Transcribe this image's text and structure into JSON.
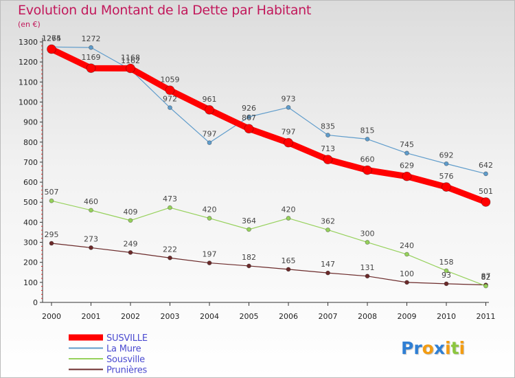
{
  "chart_data": {
    "type": "line",
    "title": "Evolution du Montant de la Dette par Habitant",
    "subtitle": "(en €)",
    "x": [
      "2000",
      "2001",
      "2002",
      "2003",
      "2004",
      "2005",
      "2006",
      "2007",
      "2008",
      "2009",
      "2010",
      "2011"
    ],
    "ylim": [
      0,
      1300
    ],
    "yticks": [
      0,
      100,
      200,
      300,
      400,
      500,
      600,
      700,
      800,
      900,
      1000,
      1100,
      1200,
      1300
    ],
    "grid": false,
    "legend_position": "bottom-left",
    "series": [
      {
        "name": "SUSVILLE",
        "color": "#ff0000",
        "width": 9,
        "marker_r": 6.5,
        "values": [
          1264,
          1169,
          1168,
          1059,
          961,
          867,
          797,
          713,
          660,
          629,
          576,
          501
        ],
        "labels": [
          "1264",
          "1169",
          "1168",
          "1059",
          "961",
          "867",
          "797",
          "713",
          "660",
          "629",
          "576",
          "501"
        ]
      },
      {
        "name": "La Mure",
        "color": "#5f9ccb",
        "width": 1.2,
        "marker_r": 3,
        "values": [
          1275,
          1272,
          1162,
          972,
          797,
          926,
          973,
          835,
          815,
          745,
          692,
          642
        ],
        "labels": [
          "1275",
          "1272",
          "1162",
          "972",
          "797",
          "926",
          "973",
          "835",
          "815",
          "745",
          "692",
          "642"
        ]
      },
      {
        "name": "Sousville",
        "color": "#96d15b",
        "width": 1.2,
        "marker_r": 3,
        "values": [
          507,
          460,
          409,
          473,
          420,
          364,
          420,
          362,
          300,
          240,
          158,
          82
        ],
        "labels": [
          "507",
          "460",
          "409",
          "473",
          "420",
          "364",
          "420",
          "362",
          "300",
          "240",
          "158",
          "82"
        ]
      },
      {
        "name": "Prunières",
        "color": "#6b2a2a",
        "width": 1.2,
        "marker_r": 3,
        "values": [
          295,
          273,
          249,
          222,
          197,
          182,
          165,
          147,
          131,
          100,
          93,
          87
        ],
        "labels": [
          "295",
          "273",
          "249",
          "222",
          "197",
          "182",
          "165",
          "147",
          "131",
          "100",
          "93",
          "87"
        ]
      }
    ]
  },
  "logo": {
    "letters": [
      "P",
      "r",
      "o",
      "x",
      "i",
      "t",
      "i"
    ],
    "colors": [
      "#2f7fd4",
      "#2f7fd4",
      "#f39c12",
      "#2f7fd4",
      "#f39c12",
      "#8cc63f",
      "#f39c12"
    ]
  }
}
